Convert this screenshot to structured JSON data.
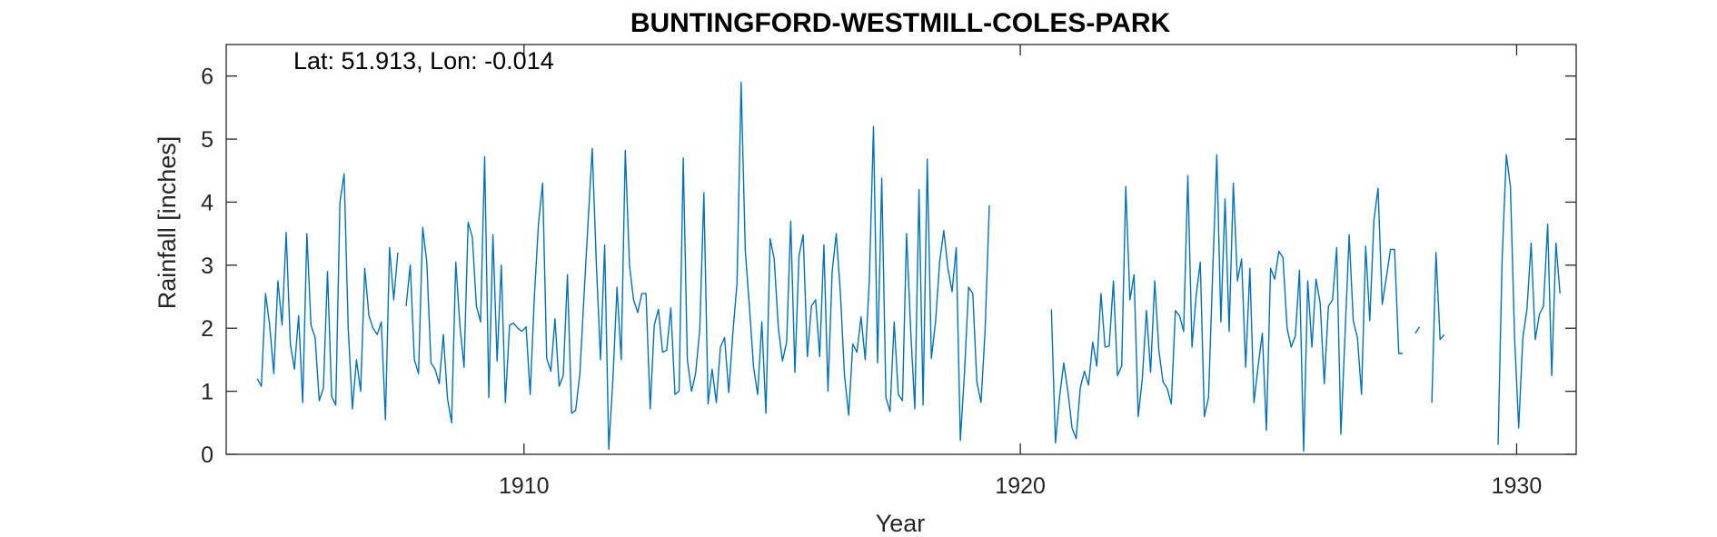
{
  "chart_data": {
    "type": "line",
    "title": "BUNTINGFORD-WESTMILL-COLES-PARK",
    "annotation": "Lat: 51.913, Lon: -0.014",
    "xlabel": "Year",
    "ylabel": "Rainfall [inches]",
    "xlim": [
      1904.0,
      1931.2
    ],
    "ylim": [
      0,
      6.5
    ],
    "xticks": [
      1910,
      1920,
      1930
    ],
    "yticks": [
      0,
      1,
      2,
      3,
      4,
      5,
      6
    ],
    "grid": false,
    "line_color": "#0072BD",
    "series": [
      {
        "start": 1904.625,
        "values": [
          1.2,
          1.08,
          2.55,
          2.05,
          1.28,
          2.75,
          2.05,
          3.52,
          1.75,
          1.35,
          2.2,
          0.82,
          3.5,
          2.05,
          1.85,
          0.85,
          1.05,
          2.9,
          0.92,
          0.78,
          4.0,
          4.45,
          2.0,
          0.72,
          1.5,
          1.0,
          2.95,
          2.2,
          2.0,
          1.9,
          2.1,
          0.55,
          3.28,
          2.45,
          3.2,
          null,
          2.35,
          3.0,
          1.5,
          1.28,
          3.6,
          3.05,
          1.45,
          1.35,
          1.12,
          1.9,
          0.88,
          0.5,
          3.05,
          2.05,
          1.38,
          3.68,
          3.45,
          2.35,
          2.1,
          4.72,
          0.9,
          3.48,
          1.48,
          3.0,
          0.82,
          2.05,
          2.08,
          2.0,
          1.95,
          2.02,
          0.95,
          2.5,
          3.65,
          4.3,
          1.52,
          1.32,
          2.15,
          1.08,
          1.25,
          2.85,
          0.65,
          0.7,
          1.28,
          2.5,
          3.7,
          4.85,
          3.0,
          1.5,
          3.32,
          0.08,
          1.2,
          2.65,
          1.5,
          4.82,
          3.0,
          2.45,
          2.25,
          2.55,
          2.55,
          0.72,
          2.05,
          2.3,
          1.62,
          1.65,
          2.32,
          0.95,
          1.0,
          4.7,
          1.5,
          1.0,
          1.28,
          1.98,
          4.15,
          0.8,
          1.35,
          0.82,
          1.7,
          1.85,
          0.98,
          1.92,
          2.72,
          5.9,
          3.22,
          2.35,
          1.38,
          0.95,
          2.1,
          0.65,
          3.42,
          3.1,
          2.0,
          1.48,
          1.78,
          3.7,
          1.3,
          3.15,
          3.48,
          1.55,
          2.35,
          2.45,
          1.55,
          3.32,
          1.0,
          2.9,
          3.5,
          2.55,
          1.25,
          0.62,
          1.75,
          1.62,
          2.18,
          1.5,
          2.75,
          5.2,
          1.45,
          4.38,
          0.9,
          0.68,
          2.1,
          0.95,
          0.85,
          3.5,
          1.95,
          0.72,
          4.2,
          0.78,
          4.68,
          1.52,
          2.1,
          3.05,
          3.55,
          2.95,
          2.58,
          3.28,
          0.22,
          1.3,
          2.65,
          2.55,
          1.15,
          0.82,
          1.98,
          3.95,
          null,
          null,
          null,
          null,
          null,
          null,
          null,
          null,
          null,
          null,
          null,
          null,
          null,
          null,
          2.3,
          0.18,
          0.92,
          1.45,
          1.0,
          0.42,
          0.25,
          1.05,
          1.32,
          1.1,
          1.78,
          1.4,
          2.55,
          1.7,
          1.72,
          2.75,
          1.25,
          1.4,
          4.25,
          2.45,
          2.85,
          0.6,
          1.2,
          2.28,
          1.3,
          2.75,
          1.65,
          1.15,
          1.05,
          0.8,
          2.28,
          2.2,
          1.95,
          4.42,
          1.7,
          2.5,
          3.05,
          0.6,
          0.9,
          2.85,
          4.75,
          2.1,
          4.05,
          1.95,
          4.3,
          2.75,
          3.1,
          1.38,
          2.95,
          0.82,
          1.4,
          1.92,
          0.38,
          2.95,
          2.78,
          3.22,
          3.12,
          2.0,
          1.7,
          1.88,
          2.92,
          0.05,
          2.75,
          1.7,
          2.78,
          2.4,
          1.12,
          2.35,
          2.45,
          3.28,
          0.32,
          1.88,
          3.48,
          2.12,
          1.85,
          0.95,
          3.3,
          2.12,
          3.72,
          4.22,
          2.38,
          2.8,
          3.25,
          3.25,
          1.6,
          1.6,
          null,
          null,
          1.92,
          2.02,
          null,
          null,
          0.82,
          3.2,
          1.82,
          1.9,
          null,
          null,
          null,
          null,
          null,
          null,
          null,
          null,
          null,
          null,
          null,
          null,
          0.15,
          3.1,
          4.75,
          4.25,
          1.85,
          0.42,
          1.85,
          2.3,
          3.35,
          1.82,
          2.22,
          2.35,
          3.65,
          1.25,
          3.35,
          2.55
        ]
      }
    ]
  }
}
